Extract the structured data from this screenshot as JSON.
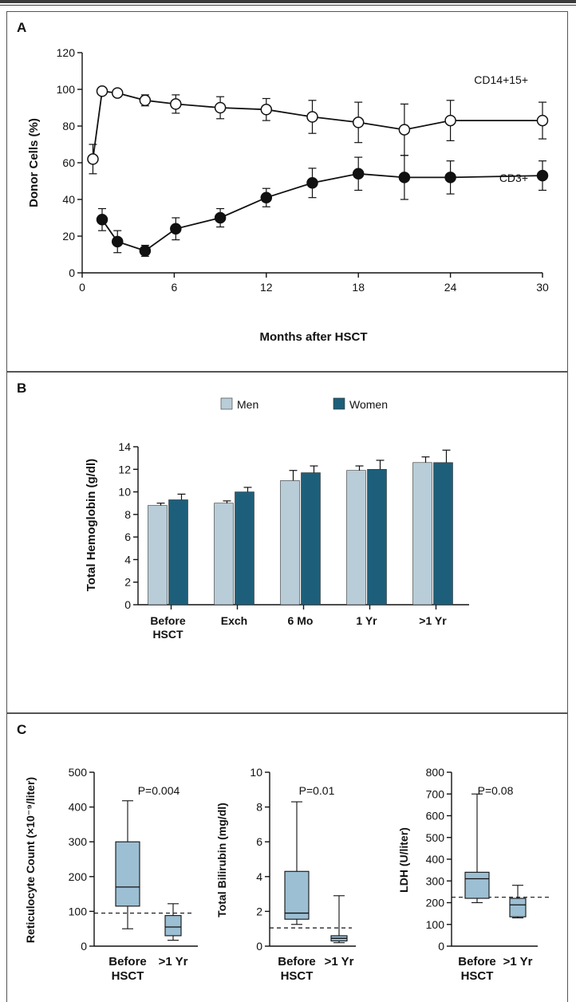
{
  "panels": {
    "a": "A",
    "b": "B",
    "c": "C"
  },
  "chart_data": [
    {
      "type": "line",
      "xlabel": "Months after HSCT",
      "ylabel": "Donor Cells (%)",
      "xlim": [
        0,
        30
      ],
      "ylim": [
        0,
        120
      ],
      "xticks": [
        0,
        6,
        12,
        18,
        24,
        30
      ],
      "yticks": [
        0,
        20,
        40,
        60,
        80,
        100,
        120
      ],
      "series": [
        {
          "name": "CD14+15+",
          "marker": "open-circle",
          "x": [
            0.7,
            1.3,
            2.3,
            4.1,
            6.1,
            9,
            12,
            15,
            18,
            21,
            24,
            30
          ],
          "y": [
            62,
            99,
            98,
            94,
            92,
            90,
            89,
            85,
            82,
            78,
            83,
            83
          ],
          "err": [
            8,
            0,
            0,
            3,
            5,
            6,
            6,
            9,
            11,
            14,
            11,
            10
          ]
        },
        {
          "name": "CD3+",
          "marker": "filled-circle",
          "x": [
            1.3,
            2.3,
            4.1,
            6.1,
            9,
            12,
            15,
            18,
            21,
            24,
            30
          ],
          "y": [
            29,
            17,
            12,
            24,
            30,
            41,
            49,
            54,
            52,
            52,
            53
          ],
          "err": [
            6,
            6,
            3,
            6,
            5,
            5,
            8,
            9,
            12,
            9,
            8
          ]
        }
      ]
    },
    {
      "type": "bar",
      "ylabel": "Total Hemoglobin (g/dl)",
      "ylim": [
        0,
        14
      ],
      "yticks": [
        0,
        2,
        4,
        6,
        8,
        10,
        12,
        14
      ],
      "categories": [
        [
          "Before",
          "HSCT"
        ],
        [
          "Exch"
        ],
        [
          "6 Mo"
        ],
        [
          "1 Yr"
        ],
        [
          ">1 Yr"
        ]
      ],
      "series": [
        {
          "name": "Men",
          "color": "#b8cdd8",
          "values": [
            8.8,
            9.0,
            11.0,
            11.9,
            12.6
          ],
          "err": [
            0.2,
            0.2,
            0.9,
            0.4,
            0.5
          ]
        },
        {
          "name": "Women",
          "color": "#1d5f7a",
          "values": [
            9.3,
            10.0,
            11.7,
            12.0,
            12.6
          ],
          "err": [
            0.5,
            0.4,
            0.6,
            0.8,
            1.1
          ]
        }
      ],
      "legend": "top"
    },
    {
      "type": "box",
      "ylabel": "Reticulocyte Count (×10⁻⁹/liter)",
      "ylim": [
        0,
        500
      ],
      "yticks": [
        0,
        100,
        200,
        300,
        400,
        500
      ],
      "annotation": "P=0.004",
      "reference_line": 95,
      "categories": [
        [
          "Before",
          "HSCT"
        ],
        [
          ">1 Yr"
        ]
      ],
      "boxes": [
        {
          "min": 50,
          "q1": 115,
          "median": 170,
          "q3": 300,
          "max": 418
        },
        {
          "min": 17,
          "q1": 30,
          "median": 55,
          "q3": 88,
          "max": 122
        }
      ]
    },
    {
      "type": "box",
      "ylabel": "Total Bilirubin (mg/dl)",
      "ylim": [
        0,
        10
      ],
      "yticks": [
        0,
        2,
        4,
        6,
        8,
        10
      ],
      "annotation": "P=0.01",
      "reference_line": 1.05,
      "categories": [
        [
          "Before",
          "HSCT"
        ],
        [
          ">1 Yr"
        ]
      ],
      "boxes": [
        {
          "min": 1.25,
          "q1": 1.55,
          "median": 1.9,
          "q3": 4.3,
          "max": 8.3
        },
        {
          "min": 0.2,
          "q1": 0.3,
          "median": 0.45,
          "q3": 0.6,
          "max": 2.9
        }
      ]
    },
    {
      "type": "box",
      "ylabel": "LDH (U/liter)",
      "ylim": [
        0,
        800
      ],
      "yticks": [
        0,
        100,
        200,
        300,
        400,
        500,
        600,
        700,
        800
      ],
      "annotation": "P=0.08",
      "reference_line": 225,
      "categories": [
        [
          "Before",
          "HSCT"
        ],
        [
          ">1 Yr"
        ]
      ],
      "boxes": [
        {
          "min": 200,
          "q1": 220,
          "median": 310,
          "q3": 340,
          "max": 700
        },
        {
          "min": 130,
          "q1": 135,
          "median": 190,
          "q3": 220,
          "max": 280
        }
      ]
    }
  ]
}
